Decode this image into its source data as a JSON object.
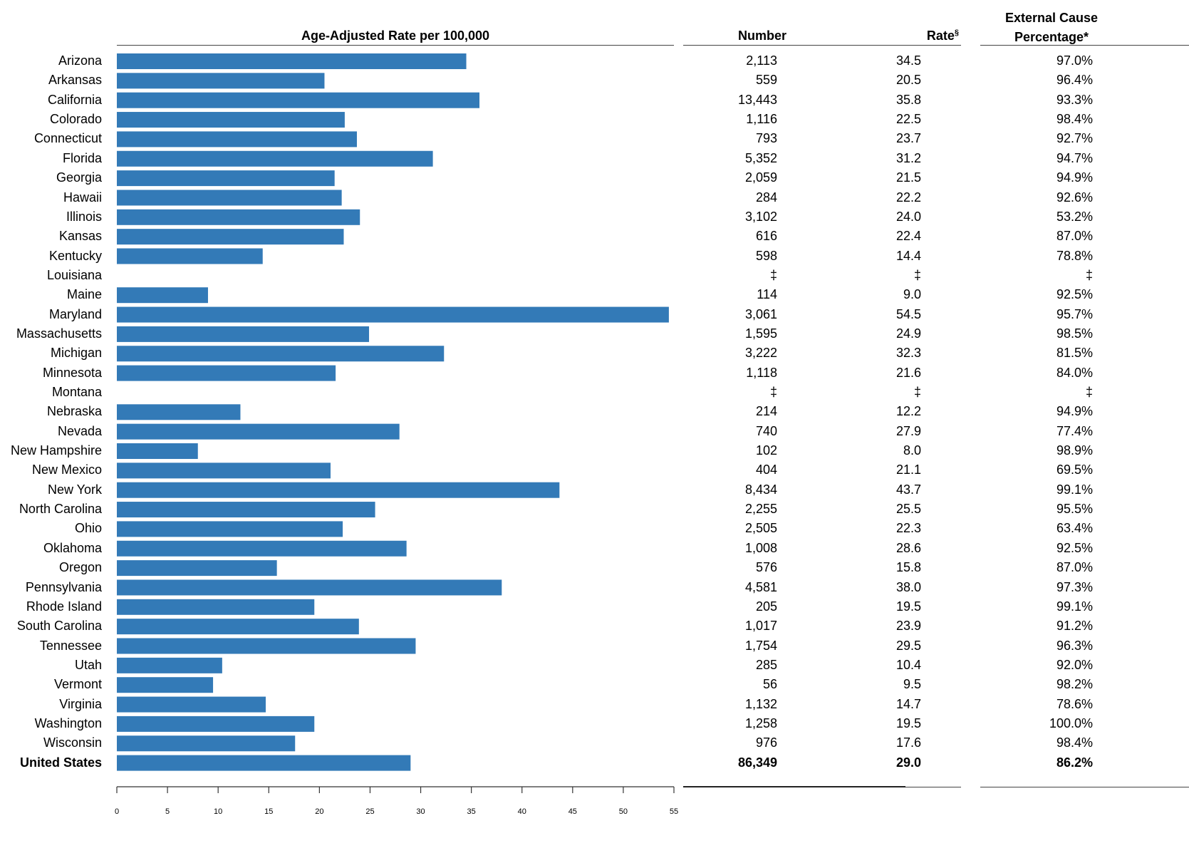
{
  "header": {
    "bar_title": "Age-Adjusted Rate per 100,000",
    "number": "Number",
    "rate": "Rate",
    "rate_mark": "§",
    "ext_line1": "External Cause",
    "ext_line2": "Percentage*"
  },
  "colors": {
    "bar": "#337ab7",
    "axis": "#333333"
  },
  "chart_data": {
    "type": "bar",
    "orientation": "horizontal",
    "xlabel": "",
    "xlim": [
      0,
      55
    ],
    "xticks": [
      0,
      5,
      10,
      15,
      20,
      25,
      30,
      35,
      40,
      45,
      50,
      55
    ],
    "categories": [
      "Arizona",
      "Arkansas",
      "California",
      "Colorado",
      "Connecticut",
      "Florida",
      "Georgia",
      "Hawaii",
      "Illinois",
      "Kansas",
      "Kentucky",
      "Louisiana",
      "Maine",
      "Maryland",
      "Massachusetts",
      "Michigan",
      "Minnesota",
      "Montana",
      "Nebraska",
      "Nevada",
      "New Hampshire",
      "New Mexico",
      "New York",
      "North Carolina",
      "Ohio",
      "Oklahoma",
      "Oregon",
      "Pennsylvania",
      "Rhode Island",
      "South Carolina",
      "Tennessee",
      "Utah",
      "Vermont",
      "Virginia",
      "Washington",
      "Wisconsin",
      "United States"
    ],
    "values": [
      34.5,
      20.5,
      35.8,
      22.5,
      23.7,
      31.2,
      21.5,
      22.2,
      24.0,
      22.4,
      14.4,
      null,
      9.0,
      54.5,
      24.9,
      32.3,
      21.6,
      null,
      12.2,
      27.9,
      8.0,
      21.1,
      43.7,
      25.5,
      22.3,
      28.6,
      15.8,
      38.0,
      19.5,
      23.9,
      29.5,
      10.4,
      9.5,
      14.7,
      19.5,
      17.6,
      29.0
    ],
    "table": {
      "number": [
        "2,113",
        "559",
        "13,443",
        "1,116",
        "793",
        "5,352",
        "2,059",
        "284",
        "3,102",
        "616",
        "598",
        "‡",
        "114",
        "3,061",
        "1,595",
        "3,222",
        "1,118",
        "‡",
        "214",
        "740",
        "102",
        "404",
        "8,434",
        "2,255",
        "2,505",
        "1,008",
        "576",
        "4,581",
        "205",
        "1,017",
        "1,754",
        "285",
        "56",
        "1,132",
        "1,258",
        "976",
        "86,349"
      ],
      "rate": [
        "34.5",
        "20.5",
        "35.8",
        "22.5",
        "23.7",
        "31.2",
        "21.5",
        "22.2",
        "24.0",
        "22.4",
        "14.4",
        "‡",
        "9.0",
        "54.5",
        "24.9",
        "32.3",
        "21.6",
        "‡",
        "12.2",
        "27.9",
        "8.0",
        "21.1",
        "43.7",
        "25.5",
        "22.3",
        "28.6",
        "15.8",
        "38.0",
        "19.5",
        "23.9",
        "29.5",
        "10.4",
        "9.5",
        "14.7",
        "19.5",
        "17.6",
        "29.0"
      ],
      "external_pct": [
        "97.0%",
        "96.4%",
        "93.3%",
        "98.4%",
        "92.7%",
        "94.7%",
        "94.9%",
        "92.6%",
        "53.2%",
        "87.0%",
        "78.8%",
        "‡",
        "92.5%",
        "95.7%",
        "98.5%",
        "81.5%",
        "84.0%",
        "‡",
        "94.9%",
        "77.4%",
        "98.9%",
        "69.5%",
        "99.1%",
        "95.5%",
        "63.4%",
        "92.5%",
        "87.0%",
        "97.3%",
        "99.1%",
        "91.2%",
        "96.3%",
        "92.0%",
        "98.2%",
        "78.6%",
        "100.0%",
        "98.4%",
        "86.2%"
      ]
    }
  }
}
